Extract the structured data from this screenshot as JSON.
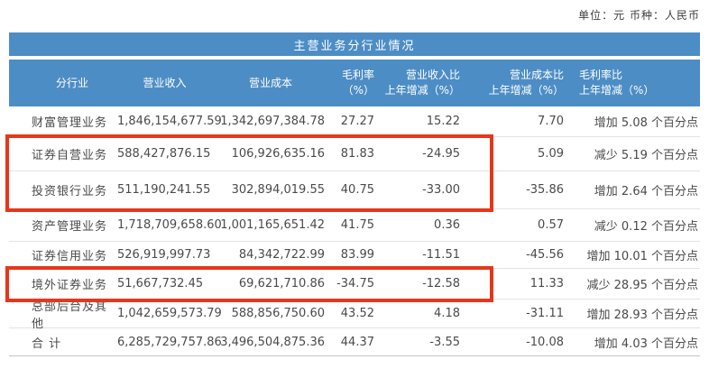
{
  "meta": {
    "unit_note": "单位：元  币种：人民币"
  },
  "table": {
    "title": "主营业务分行业情况",
    "headers": [
      {
        "line1": "分行业",
        "line2": ""
      },
      {
        "line1": "营业收入",
        "line2": ""
      },
      {
        "line1": "营业成本",
        "line2": ""
      },
      {
        "line1": "毛利率",
        "line2": "（%）"
      },
      {
        "line1": "营业收入比",
        "line2": "上年增减（%）"
      },
      {
        "line1": "营业成本比",
        "line2": "上年增减（%）"
      },
      {
        "line1": "毛利率比",
        "line2": "上年增减（%）"
      }
    ],
    "rows": [
      {
        "cells": [
          "财富管理业务",
          "1,846,154,677.59",
          "1,342,697,384.78",
          "27.27",
          "15.22",
          "7.70",
          "增加 5.08 个百分点"
        ]
      },
      {
        "cells": [
          "证券自营业务",
          "588,427,876.15",
          "106,926,635.16",
          "81.83",
          "-24.95",
          "5.09",
          "减少 5.19 个百分点"
        ]
      },
      {
        "cells": [
          "投资银行业务",
          "511,190,241.55",
          "302,894,019.55",
          "40.75",
          "-33.00",
          "-35.86",
          "增加 2.64 个百分点"
        ]
      },
      {
        "cells": [
          "资产管理业务",
          "1,718,709,658.60",
          "1,001,165,651.42",
          "41.75",
          "0.36",
          "0.57",
          "减少 0.12 个百分点"
        ]
      },
      {
        "cells": [
          "证券信用业务",
          "526,919,997.73",
          "84,342,722.99",
          "83.99",
          "-11.51",
          "-45.56",
          "增加 10.01 个百分点"
        ]
      },
      {
        "cells": [
          "境外证券业务",
          "51,667,732.45",
          "69,621,710.86",
          "-34.75",
          "-12.58",
          "11.33",
          "减少 28.95 个百分点"
        ]
      },
      {
        "cells": [
          "总部后台及其他",
          "1,042,659,573.79",
          "588,856,750.60",
          "43.52",
          "4.18",
          "-31.11",
          "增加 28.93 个百分点"
        ]
      },
      {
        "cells": [
          "合 计",
          "6,285,729,757.86",
          "3,496,504,875.36",
          "44.37",
          "-3.55",
          "-10.08",
          "增加 4.03 个百分点"
        ]
      }
    ]
  },
  "annotations": {
    "highlight_color": "#e5371b",
    "highlight_1_rows": "证券自营业务、投资银行业务",
    "highlight_2_rows": "境外证券业务"
  },
  "colors": {
    "header_blue": "#4d8dc5"
  }
}
